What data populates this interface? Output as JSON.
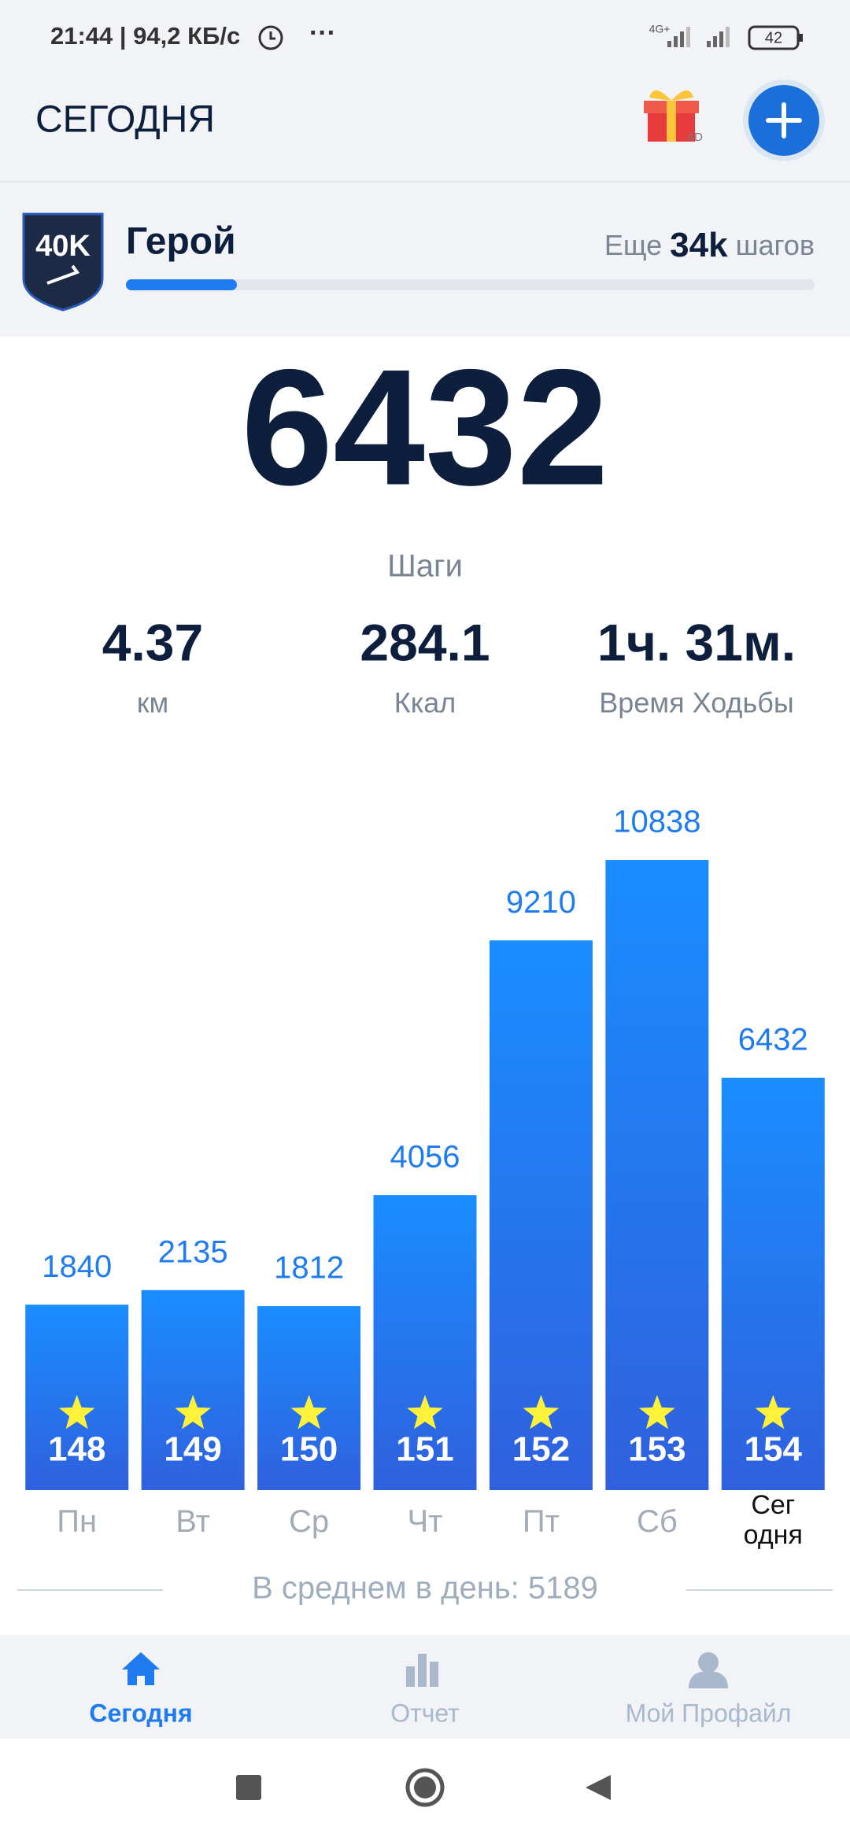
{
  "status_bar": {
    "time": "21:44 | 94,2 КБ/с",
    "more": "···",
    "network": "4G+",
    "battery": "42"
  },
  "header": {
    "title": "СЕГОДНЯ",
    "gift_badge": "AD"
  },
  "level": {
    "badge": "40K",
    "name": "Герой",
    "remaining_prefix": "Еще",
    "remaining_value": "34k",
    "remaining_suffix": "шагов"
  },
  "summary": {
    "steps": "6432",
    "steps_label": "Шаги",
    "stats": [
      {
        "value": "4.37",
        "label": "км"
      },
      {
        "value": "284.1",
        "label": "Ккал"
      },
      {
        "value": "1ч. 31м.",
        "label": "Время Ходьбы"
      }
    ]
  },
  "chart_data": {
    "type": "bar",
    "categories": [
      "Пн",
      "Вт",
      "Ср",
      "Чт",
      "Пт",
      "Сб",
      "Сег\nодня"
    ],
    "values": [
      1840,
      2135,
      1812,
      4056,
      9210,
      10838,
      6432
    ],
    "badges": [
      "148",
      "149",
      "150",
      "151",
      "152",
      "153",
      "154"
    ],
    "ylim": [
      -1911,
      10838
    ],
    "color": "#1f7cf0"
  },
  "average": "В среднем в день: 5189",
  "nav": [
    {
      "label": "Сегодня"
    },
    {
      "label": "Отчет"
    },
    {
      "label": "Мой Профайл"
    }
  ]
}
